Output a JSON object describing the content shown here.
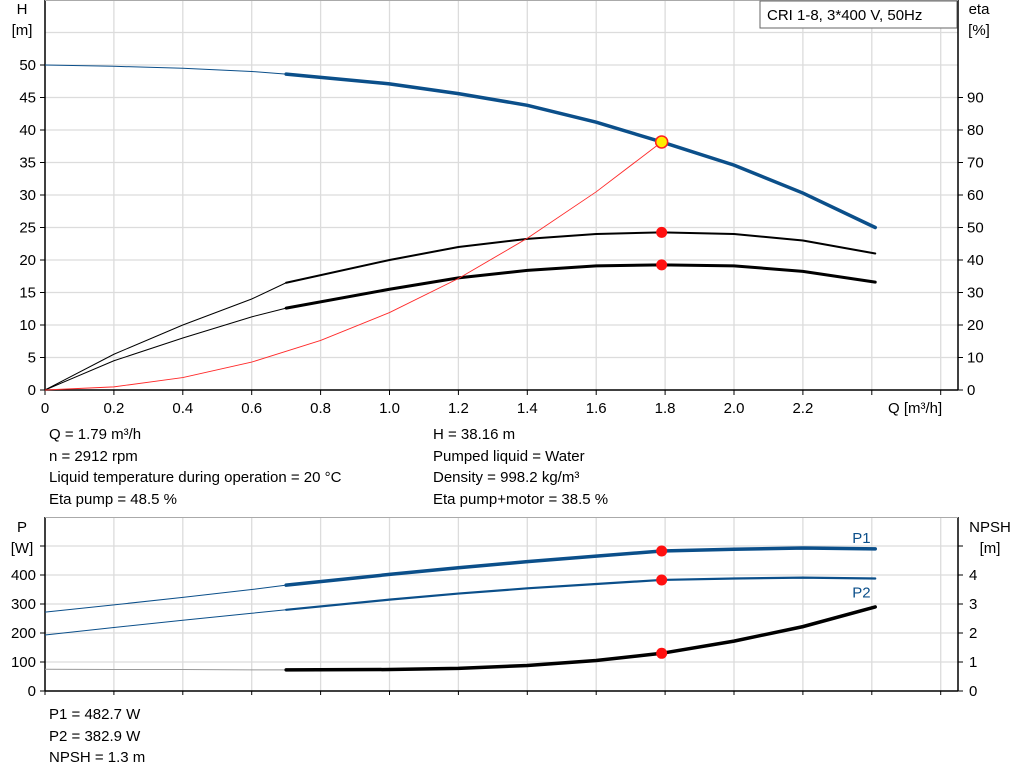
{
  "chart_data": [
    {
      "type": "line",
      "title": "CRI 1-8, 3*400 V, 50Hz",
      "xlabel": "Q [m³/h]",
      "ylabel": "H\n[m]",
      "ylabel_left_lines": [
        "H",
        "[m]"
      ],
      "ylabel_right_lines": [
        "eta",
        "[%]"
      ],
      "xlim": [
        0,
        2.6
      ],
      "ylim": [
        0,
        55
      ],
      "y2lim": [
        0,
        110
      ],
      "xticks": [
        "0",
        "0.2",
        "0.4",
        "0.6",
        "0.8",
        "1.0",
        "1.2",
        "1.4",
        "1.6",
        "1.8",
        "2.0",
        "2.2"
      ],
      "yticks": [
        "0",
        "5",
        "10",
        "15",
        "20",
        "25",
        "30",
        "35",
        "40",
        "45",
        "50"
      ],
      "y2ticks": [
        "0",
        "10",
        "20",
        "30",
        "40",
        "50",
        "60",
        "70",
        "80",
        "90"
      ],
      "grid": true,
      "series": [
        {
          "key": "H",
          "axis": "left",
          "color": "#0b4f8a",
          "thick_from": 0.7,
          "x": [
            0,
            0.2,
            0.4,
            0.6,
            0.7,
            1.0,
            1.2,
            1.4,
            1.6,
            1.79,
            2.0,
            2.2,
            2.41
          ],
          "y": [
            50,
            49.8,
            49.5,
            49,
            48.6,
            47.1,
            45.6,
            43.8,
            41.2,
            38.16,
            34.6,
            30.3,
            25
          ]
        },
        {
          "key": "eta_pump",
          "axis": "right",
          "color": "#000000",
          "thick_from": 0.7,
          "width": 2,
          "x": [
            0,
            0.2,
            0.4,
            0.6,
            0.7,
            1.0,
            1.2,
            1.4,
            1.6,
            1.79,
            2.0,
            2.2,
            2.41
          ],
          "y": [
            0,
            11,
            20,
            28,
            33,
            40,
            44,
            46.5,
            48,
            48.5,
            48,
            46,
            42
          ]
        },
        {
          "key": "eta_pump_motor",
          "axis": "right",
          "color": "#000000",
          "thick_from": 0.7,
          "width": 3,
          "x": [
            0,
            0.2,
            0.4,
            0.6,
            0.7,
            1.0,
            1.2,
            1.4,
            1.6,
            1.79,
            2.0,
            2.2,
            2.41
          ],
          "y": [
            0,
            9,
            16,
            22.5,
            25.2,
            31,
            34.5,
            36.8,
            38.2,
            38.5,
            38.2,
            36.5,
            33.2
          ]
        },
        {
          "key": "system_curve",
          "axis": "left",
          "color": "#ff2a2a",
          "thick_from": 99,
          "x": [
            0,
            0.2,
            0.4,
            0.6,
            0.8,
            1.0,
            1.2,
            1.4,
            1.6,
            1.79
          ],
          "y": [
            0,
            0.48,
            1.91,
            4.29,
            7.62,
            11.91,
            17.15,
            23.34,
            30.49,
            38.16
          ]
        }
      ],
      "duty_point": {
        "Q": 1.79,
        "H": 38.16,
        "eta_pump": 48.5,
        "eta_pump_motor": 38.5
      }
    },
    {
      "type": "line",
      "ylabel_left_lines": [
        "P",
        "[W]"
      ],
      "ylabel_right_lines": [
        "NPSH",
        "[m]"
      ],
      "xlim": [
        0,
        2.6
      ],
      "ylim": [
        0,
        500
      ],
      "y2lim": [
        0,
        5
      ],
      "yticks": [
        "0",
        "100",
        "200",
        "300",
        "400"
      ],
      "y2ticks": [
        "0",
        "1",
        "2",
        "3",
        "4"
      ],
      "grid": true,
      "series": [
        {
          "key": "P1",
          "name": "P1",
          "axis": "left",
          "color": "#0b4f8a",
          "thick_from": 0.7,
          "width": 3.5,
          "x": [
            0,
            0.2,
            0.4,
            0.6,
            0.7,
            1.0,
            1.2,
            1.4,
            1.6,
            1.79,
            2.0,
            2.2,
            2.41
          ],
          "y": [
            272,
            297,
            323,
            350,
            365,
            402,
            425,
            446,
            465,
            482.7,
            489,
            493,
            490
          ]
        },
        {
          "key": "P2",
          "name": "P2",
          "axis": "left",
          "color": "#0b4f8a",
          "thick_from": 0.7,
          "width": 2.2,
          "x": [
            0,
            0.2,
            0.4,
            0.6,
            0.7,
            1.0,
            1.2,
            1.4,
            1.6,
            1.79,
            2.0,
            2.2,
            2.41
          ],
          "y": [
            193,
            219,
            244,
            268,
            280,
            315,
            336,
            354,
            369,
            382.9,
            388,
            391,
            388
          ]
        },
        {
          "key": "NPSH",
          "axis": "right",
          "color": "#000000",
          "thin_color": "#999999",
          "thick_from": 0.7,
          "width": 3.5,
          "x": [
            0,
            0.2,
            0.4,
            0.6,
            0.7,
            1.0,
            1.2,
            1.4,
            1.6,
            1.79,
            2.0,
            2.2,
            2.41
          ],
          "y": [
            0.75,
            0.74,
            0.74,
            0.73,
            0.73,
            0.74,
            0.78,
            0.88,
            1.05,
            1.3,
            1.72,
            2.22,
            2.9
          ]
        }
      ],
      "duty_point": {
        "P1": 482.7,
        "P2": 382.9,
        "NPSH": 1.3
      }
    }
  ],
  "info_top_left": [
    "Q = 1.79 m³/h",
    "n = 2912 rpm",
    "Liquid temperature during operation = 20 °C",
    "Eta pump = 48.5 %"
  ],
  "info_top_right": [
    "H = 38.16 m",
    "Pumped liquid = Water",
    "Density = 998.2 kg/m³",
    "Eta pump+motor = 38.5 %"
  ],
  "info_bottom": [
    "P1 = 482.7 W",
    "P2 = 382.9 W",
    "NPSH = 1.3 m"
  ]
}
